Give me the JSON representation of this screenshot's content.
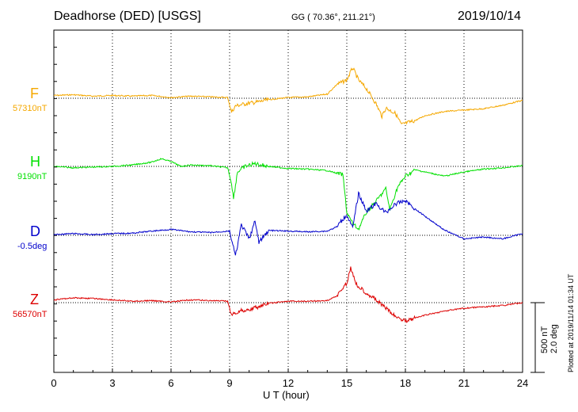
{
  "header": {
    "station": "Deadhorse (DED)  [USGS]",
    "coords": "GG ( 70.36°, 211.21°)",
    "date": "2019/10/14"
  },
  "footer": {
    "scale_amplitude": "500 nT",
    "scale_angle": "2.0 deg",
    "plotted": "Plotted at 2019/11/14 01:34 UT"
  },
  "colors": {
    "F": "#f5a800",
    "H": "#00e000",
    "D": "#0000cc",
    "Z": "#dd0000"
  },
  "chart_data": {
    "type": "line",
    "xlabel": "U T (hour)",
    "x_ticks": [
      "0",
      "3",
      "6",
      "9",
      "12",
      "15",
      "18",
      "21",
      "24"
    ],
    "xlim": [
      0,
      24
    ],
    "grid": true,
    "scale": {
      "nT_per_division": 500,
      "deg_per_division": 2.0
    },
    "series": [
      {
        "name": "F",
        "baseline_label": "57310nT",
        "baseline": 57310,
        "unit": "nT",
        "points": [
          [
            0,
            57330
          ],
          [
            1,
            57335
          ],
          [
            2,
            57325
          ],
          [
            3,
            57330
          ],
          [
            4,
            57325
          ],
          [
            5,
            57330
          ],
          [
            6,
            57315
          ],
          [
            7,
            57325
          ],
          [
            8,
            57320
          ],
          [
            8.9,
            57315
          ],
          [
            9.1,
            57210
          ],
          [
            9.3,
            57255
          ],
          [
            9.8,
            57270
          ],
          [
            10.5,
            57285
          ],
          [
            11,
            57300
          ],
          [
            12,
            57315
          ],
          [
            13,
            57320
          ],
          [
            14,
            57340
          ],
          [
            14.5,
            57410
          ],
          [
            15,
            57440
          ],
          [
            15.3,
            57530
          ],
          [
            15.6,
            57440
          ],
          [
            16,
            57380
          ],
          [
            16.5,
            57270
          ],
          [
            16.8,
            57180
          ],
          [
            17,
            57240
          ],
          [
            17.5,
            57200
          ],
          [
            17.8,
            57120
          ],
          [
            18,
            57130
          ],
          [
            18.5,
            57150
          ],
          [
            19,
            57185
          ],
          [
            20,
            57215
          ],
          [
            21,
            57225
          ],
          [
            22,
            57235
          ],
          [
            23,
            57260
          ],
          [
            24,
            57295
          ]
        ]
      },
      {
        "name": "H",
        "baseline_label": "9190nT",
        "baseline": 9190,
        "unit": "nT",
        "points": [
          [
            0,
            9190
          ],
          [
            1,
            9180
          ],
          [
            2,
            9185
          ],
          [
            3,
            9190
          ],
          [
            4,
            9200
          ],
          [
            5,
            9220
          ],
          [
            5.5,
            9245
          ],
          [
            6,
            9225
          ],
          [
            6.5,
            9190
          ],
          [
            7,
            9200
          ],
          [
            8,
            9195
          ],
          [
            8.9,
            9180
          ],
          [
            9.1,
            9070
          ],
          [
            9.2,
            8960
          ],
          [
            9.4,
            9150
          ],
          [
            9.8,
            9190
          ],
          [
            10.3,
            9210
          ],
          [
            11,
            9190
          ],
          [
            12,
            9175
          ],
          [
            13,
            9170
          ],
          [
            14,
            9160
          ],
          [
            14.5,
            9140
          ],
          [
            14.8,
            9130
          ],
          [
            15,
            8860
          ],
          [
            15.3,
            8780
          ],
          [
            15.6,
            8740
          ],
          [
            16,
            8860
          ],
          [
            16.5,
            8940
          ],
          [
            17,
            9030
          ],
          [
            17.2,
            8880
          ],
          [
            17.6,
            9040
          ],
          [
            18,
            9120
          ],
          [
            18.5,
            9165
          ],
          [
            19,
            9150
          ],
          [
            20,
            9120
          ],
          [
            21,
            9150
          ],
          [
            22,
            9170
          ],
          [
            23,
            9180
          ],
          [
            24,
            9195
          ]
        ]
      },
      {
        "name": "D",
        "baseline_label": "-0.5deg",
        "baseline": -0.5,
        "unit": "deg",
        "points": [
          [
            0,
            -0.48
          ],
          [
            1,
            -0.45
          ],
          [
            2,
            -0.48
          ],
          [
            3,
            -0.45
          ],
          [
            4,
            -0.44
          ],
          [
            5,
            -0.38
          ],
          [
            6,
            -0.33
          ],
          [
            7,
            -0.4
          ],
          [
            8,
            -0.42
          ],
          [
            9,
            -0.38
          ],
          [
            9.3,
            -1.1
          ],
          [
            9.6,
            -0.2
          ],
          [
            10,
            -0.6
          ],
          [
            10.3,
            -0.1
          ],
          [
            10.5,
            -0.7
          ],
          [
            11,
            -0.36
          ],
          [
            12,
            -0.38
          ],
          [
            13,
            -0.4
          ],
          [
            14,
            -0.38
          ],
          [
            14.5,
            -0.25
          ],
          [
            15,
            0.1
          ],
          [
            15.3,
            -0.3
          ],
          [
            15.6,
            0.7
          ],
          [
            16,
            0.2
          ],
          [
            16.5,
            0.4
          ],
          [
            17,
            0.15
          ],
          [
            17.5,
            0.4
          ],
          [
            18,
            0.5
          ],
          [
            18.5,
            0.25
          ],
          [
            19,
            0.05
          ],
          [
            20,
            -0.35
          ],
          [
            21,
            -0.6
          ],
          [
            22,
            -0.55
          ],
          [
            23,
            -0.6
          ],
          [
            24,
            -0.45
          ]
        ]
      },
      {
        "name": "Z",
        "baseline_label": "56570nT",
        "baseline": 56570,
        "unit": "nT",
        "points": [
          [
            0,
            56590
          ],
          [
            1,
            56605
          ],
          [
            2,
            56600
          ],
          [
            3,
            56590
          ],
          [
            4,
            56580
          ],
          [
            5,
            56585
          ],
          [
            6,
            56575
          ],
          [
            7,
            56590
          ],
          [
            8,
            56585
          ],
          [
            8.9,
            56580
          ],
          [
            9.1,
            56480
          ],
          [
            9.5,
            56510
          ],
          [
            10,
            56520
          ],
          [
            11,
            56565
          ],
          [
            12,
            56580
          ],
          [
            13,
            56580
          ],
          [
            14,
            56585
          ],
          [
            14.5,
            56620
          ],
          [
            15,
            56710
          ],
          [
            15.2,
            56820
          ],
          [
            15.5,
            56700
          ],
          [
            16,
            56640
          ],
          [
            16.5,
            56590
          ],
          [
            17,
            56530
          ],
          [
            17.5,
            56470
          ],
          [
            18,
            56440
          ],
          [
            18.5,
            56460
          ],
          [
            19,
            56480
          ],
          [
            20,
            56510
          ],
          [
            21,
            56530
          ],
          [
            22,
            56540
          ],
          [
            23,
            56550
          ],
          [
            24,
            56570
          ]
        ]
      }
    ]
  }
}
